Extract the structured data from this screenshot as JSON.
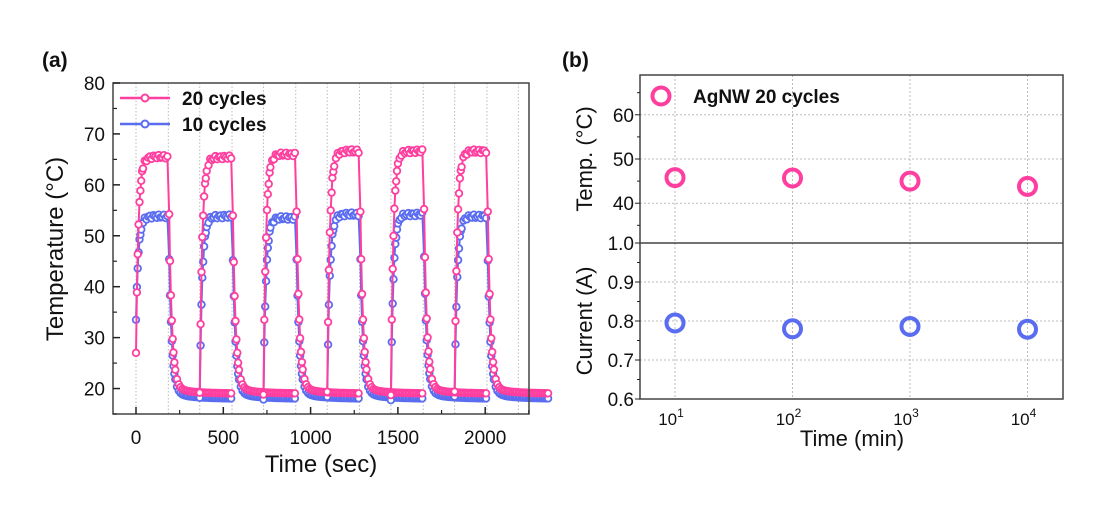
{
  "colors": {
    "series_20": "#ff3f9f",
    "series_10": "#5a6cf0",
    "grid": "#bbbbbb",
    "frame": "#444444"
  },
  "chart_data": [
    {
      "panel": "(a)",
      "type": "line",
      "title": "",
      "xlabel": "Time (sec)",
      "ylabel": "Temperature (°C)",
      "xlim": [
        -130,
        2200
      ],
      "ylim": [
        15,
        80
      ],
      "xticks": [
        0,
        500,
        1000,
        1500,
        2000
      ],
      "yticks": [
        20,
        30,
        40,
        50,
        60,
        70,
        80
      ],
      "grid": "vertical-dotted",
      "legend_position": "top-left",
      "cycle_period_sec": 365,
      "heating_duration_sec": 185,
      "cycles": 6,
      "series": [
        {
          "name": "20 cycles",
          "start": 27,
          "plateau": [
            65.5,
            65.4,
            66.0,
            66.6,
            66.6,
            66.6
          ],
          "cool_end": 19.0
        },
        {
          "name": "10 cycles",
          "start": 33.5,
          "plateau": [
            53.8,
            53.8,
            53.5,
            54.2,
            54.2,
            53.8
          ],
          "cool_end": 18.0
        }
      ]
    },
    {
      "panel": "(b)",
      "type": "scatter",
      "xlabel": "Time (min)",
      "xscale": "log",
      "xlim": [
        5,
        20000
      ],
      "x": [
        10,
        100,
        1000,
        10000
      ],
      "xtick_labels": [
        [
          "10",
          "1"
        ],
        [
          "10",
          "2"
        ],
        [
          "10",
          "3"
        ],
        [
          "10",
          "4"
        ]
      ],
      "grid": "dotted",
      "legend_position": "top-left",
      "subplots": [
        {
          "name": "temp",
          "ylabel": "Temp. (°C)",
          "ylim": [
            31,
            69
          ],
          "yticks": [
            40,
            50,
            60
          ],
          "values": [
            45.8,
            45.7,
            45.0,
            43.8
          ]
        },
        {
          "name": "current",
          "ylabel": "Current (A)",
          "ylim": [
            0.6,
            1.0
          ],
          "yticks": [
            0.6,
            0.7,
            0.8,
            0.9,
            1.0
          ],
          "ytick_labels": [
            "0.6",
            "0.7",
            "0.8",
            "0.9",
            "1.0"
          ],
          "values": [
            0.795,
            0.78,
            0.786,
            0.779
          ]
        }
      ],
      "legend": [
        "AgNW 20 cycles"
      ]
    }
  ]
}
